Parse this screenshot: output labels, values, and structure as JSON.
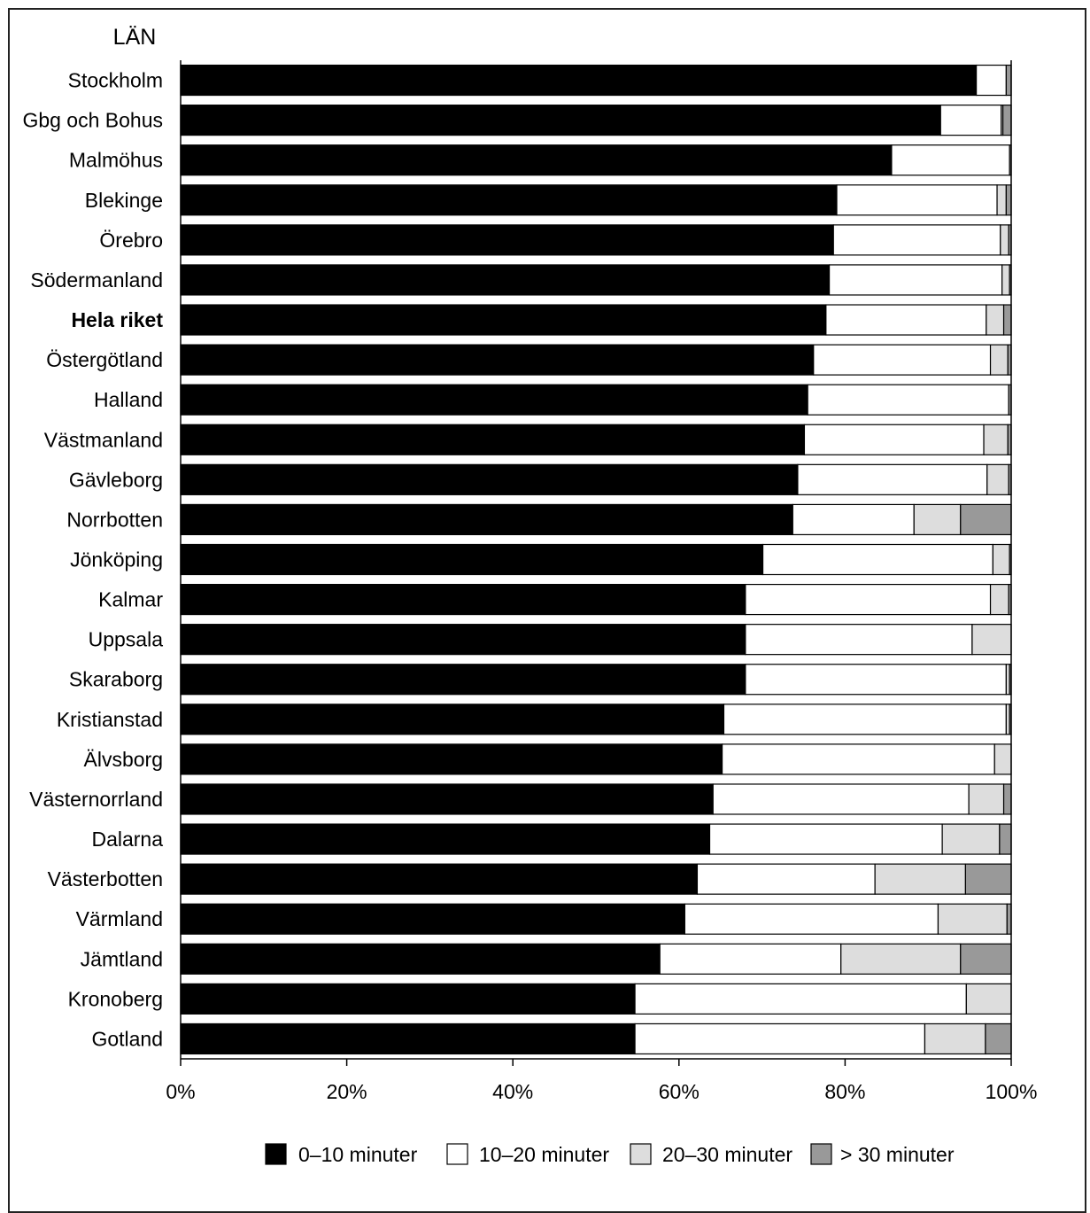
{
  "chart_data": {
    "type": "bar",
    "orientation": "horizontal",
    "stacked": true,
    "ylabel": "LÄN",
    "x_ticks": [
      "0%",
      "20%",
      "40%",
      "60%",
      "80%",
      "100%"
    ],
    "xlim": [
      0,
      100
    ],
    "grid": false,
    "legend_position": "bottom",
    "categories": [
      "Stockholm",
      "Gbg och Bohus",
      "Malmöhus",
      "Blekinge",
      "Örebro",
      "Södermanland",
      "Hela riket",
      "Östergötland",
      "Halland",
      "Västmanland",
      "Gävleborg",
      "Norrbotten",
      "Jönköping",
      "Kalmar",
      "Uppsala",
      "Skaraborg",
      "Kristianstad",
      "Älvsborg",
      "Västernorrland",
      "Dalarna",
      "Västerbotten",
      "Värmland",
      "Jämtland",
      "Kronoberg",
      "Gotland"
    ],
    "bold_categories": [
      "Hela riket"
    ],
    "series": [
      {
        "name": "0–10 minuter",
        "color": "#000000",
        "values": [
          95.8,
          91.5,
          85.6,
          79.0,
          78.6,
          78.1,
          77.7,
          76.2,
          75.5,
          75.1,
          74.3,
          73.7,
          70.1,
          68.0,
          68.0,
          68.0,
          65.4,
          65.2,
          64.1,
          63.7,
          62.2,
          60.7,
          57.7,
          54.7,
          54.7
        ]
      },
      {
        "name": "10–20 minuter",
        "color": "#ffffff",
        "values": [
          3.6,
          7.3,
          14.2,
          19.3,
          20.1,
          20.8,
          19.3,
          21.3,
          24.2,
          21.6,
          22.8,
          14.6,
          27.7,
          29.5,
          27.3,
          31.4,
          34.0,
          32.8,
          30.8,
          28.0,
          21.4,
          30.5,
          21.8,
          39.9,
          34.9
        ]
      },
      {
        "name": "20–30 minuter",
        "color": "#dddddd",
        "values": [
          0.0,
          0.2,
          0.0,
          1.1,
          1.0,
          0.9,
          2.1,
          2.1,
          0.0,
          2.9,
          2.6,
          5.6,
          2.0,
          2.2,
          4.7,
          0.4,
          0.4,
          2.0,
          4.2,
          6.9,
          10.9,
          8.3,
          14.4,
          5.4,
          7.3
        ]
      },
      {
        "name": "> 30 minuter",
        "color": "#999999",
        "values": [
          0.6,
          1.0,
          0.2,
          0.6,
          0.3,
          0.2,
          0.9,
          0.4,
          0.3,
          0.4,
          0.3,
          6.1,
          0.2,
          0.3,
          0.0,
          0.2,
          0.2,
          0.0,
          0.9,
          1.4,
          5.5,
          0.5,
          6.1,
          0.0,
          3.1
        ]
      }
    ]
  }
}
